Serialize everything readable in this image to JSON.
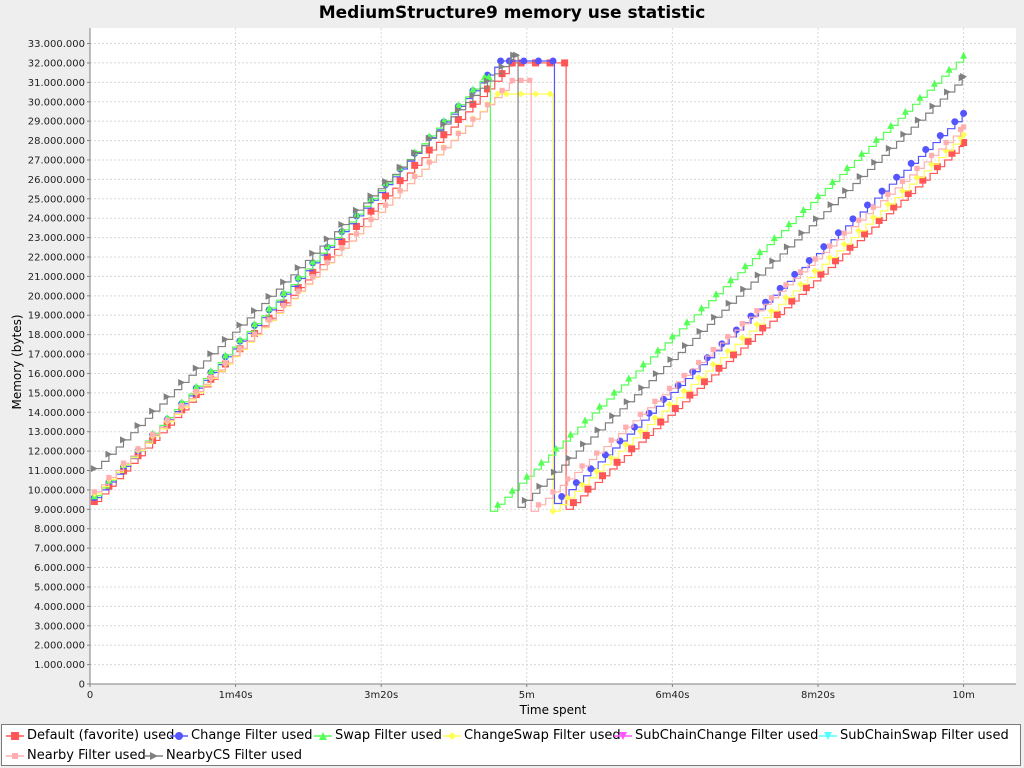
{
  "chart_data": {
    "type": "line",
    "title": "MediumStructure9 memory use statistic",
    "xlabel": "Time spent",
    "ylabel": "Memory (bytes)",
    "x_unit": "seconds",
    "xlim": [
      0,
      636
    ],
    "ylim": [
      0,
      33800000
    ],
    "x_ticks": [
      {
        "value": 0,
        "label": "0"
      },
      {
        "value": 100,
        "label": "1m40s"
      },
      {
        "value": 200,
        "label": "3m20s"
      },
      {
        "value": 300,
        "label": "5m"
      },
      {
        "value": 400,
        "label": "6m40s"
      },
      {
        "value": 500,
        "label": "8m20s"
      },
      {
        "value": 600,
        "label": "10m"
      }
    ],
    "y_ticks": [
      {
        "value": 0,
        "label": "0"
      },
      {
        "value": 1000000,
        "label": "1.000.000"
      },
      {
        "value": 2000000,
        "label": "2.000.000"
      },
      {
        "value": 3000000,
        "label": "3.000.000"
      },
      {
        "value": 4000000,
        "label": "4.000.000"
      },
      {
        "value": 5000000,
        "label": "5.000.000"
      },
      {
        "value": 6000000,
        "label": "6.000.000"
      },
      {
        "value": 7000000,
        "label": "7.000.000"
      },
      {
        "value": 8000000,
        "label": "8.000.000"
      },
      {
        "value": 9000000,
        "label": "9.000.000"
      },
      {
        "value": 10000000,
        "label": "10.000.000"
      },
      {
        "value": 11000000,
        "label": "11.000.000"
      },
      {
        "value": 12000000,
        "label": "12.000.000"
      },
      {
        "value": 13000000,
        "label": "13.000.000"
      },
      {
        "value": 14000000,
        "label": "14.000.000"
      },
      {
        "value": 15000000,
        "label": "15.000.000"
      },
      {
        "value": 16000000,
        "label": "16.000.000"
      },
      {
        "value": 17000000,
        "label": "17.000.000"
      },
      {
        "value": 18000000,
        "label": "18.000.000"
      },
      {
        "value": 19000000,
        "label": "19.000.000"
      },
      {
        "value": 20000000,
        "label": "20.000.000"
      },
      {
        "value": 21000000,
        "label": "21.000.000"
      },
      {
        "value": 22000000,
        "label": "22.000.000"
      },
      {
        "value": 23000000,
        "label": "23.000.000"
      },
      {
        "value": 24000000,
        "label": "24.000.000"
      },
      {
        "value": 25000000,
        "label": "25.000.000"
      },
      {
        "value": 26000000,
        "label": "26.000.000"
      },
      {
        "value": 27000000,
        "label": "27.000.000"
      },
      {
        "value": 28000000,
        "label": "28.000.000"
      },
      {
        "value": 29000000,
        "label": "29.000.000"
      },
      {
        "value": 30000000,
        "label": "30.000.000"
      },
      {
        "value": 31000000,
        "label": "31.000.000"
      },
      {
        "value": 32000000,
        "label": "32.000.000"
      },
      {
        "value": 33000000,
        "label": "33.000.000"
      }
    ],
    "grid": true,
    "legend_position": "bottom",
    "series": [
      {
        "name": "Default (favorite) used",
        "color": "#ff5555",
        "marker": "square",
        "x": [
          3,
          290,
          291,
          326,
          327,
          600
        ],
        "y": [
          9400000,
          32000000,
          32000000,
          32000000,
          9000000,
          27900000
        ]
      },
      {
        "name": "Change Filter used",
        "color": "#5555ff",
        "marker": "circle",
        "x": [
          3,
          282,
          283,
          318,
          319,
          600
        ],
        "y": [
          9600000,
          32100000,
          32100000,
          32100000,
          9300000,
          29400000
        ]
      },
      {
        "name": "Swap Filter used",
        "color": "#55ff55",
        "marker": "triangle-up",
        "x": [
          3,
          271,
          272,
          274,
          275,
          600
        ],
        "y": [
          9700000,
          31300000,
          31300000,
          31300000,
          8900000,
          32400000
        ]
      },
      {
        "name": "ChangeSwap Filter used",
        "color": "#ffff55",
        "marker": "diamond",
        "x": [
          3,
          280,
          281,
          317,
          318,
          600
        ],
        "y": [
          9800000,
          30400000,
          30400000,
          30400000,
          8900000,
          28300000
        ]
      },
      {
        "name": "SubChainChange Filter used",
        "color": "#ff55ff",
        "marker": "triangle-down",
        "x": [],
        "y": []
      },
      {
        "name": "SubChainSwap Filter used",
        "color": "#55ffff",
        "marker": "triangle-down",
        "x": [],
        "y": []
      },
      {
        "name": "Nearby Filter used",
        "color": "#ffafaf",
        "marker": "square-small",
        "x": [
          3,
          290,
          291,
          302,
          303,
          600
        ],
        "y": [
          9900000,
          31100000,
          31100000,
          31100000,
          8900000,
          28700000
        ]
      },
      {
        "name": "NearbyCS Filter used",
        "color": "#808080",
        "marker": "triangle-right",
        "x": [
          3,
          291,
          292,
          293,
          294,
          600
        ],
        "y": [
          11100000,
          32400000,
          32400000,
          32400000,
          9100000,
          31300000
        ]
      }
    ]
  }
}
